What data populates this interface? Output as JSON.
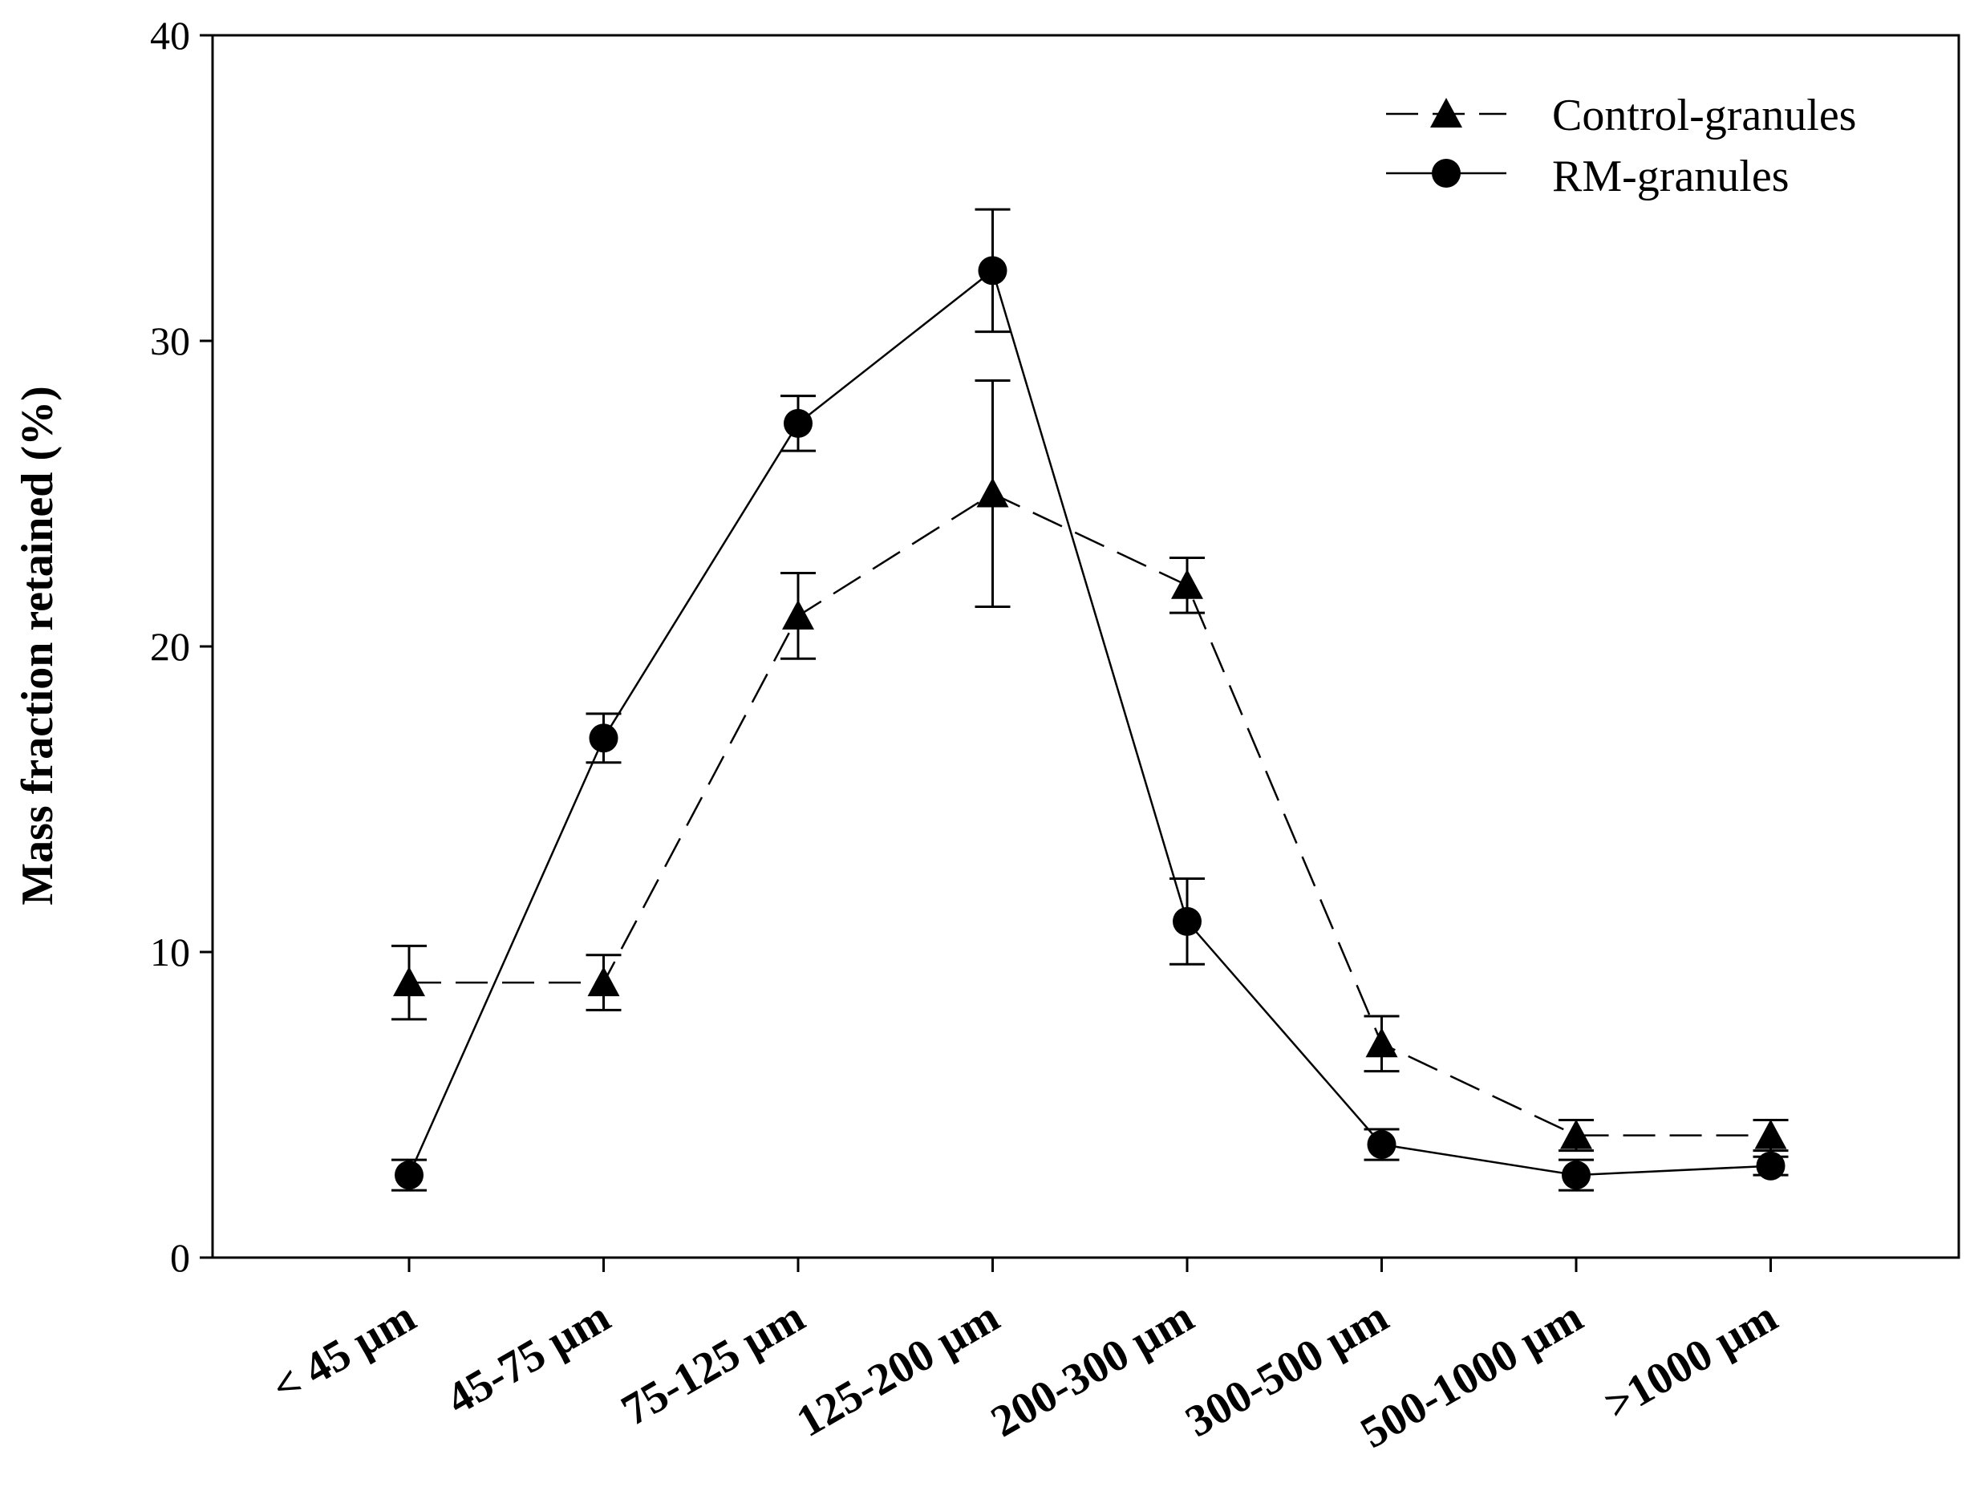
{
  "chart_data": {
    "type": "line",
    "title": "",
    "xlabel": "",
    "ylabel": "Mass fraction retained (%)",
    "ylim": [
      0,
      40
    ],
    "yticks": [
      0,
      10,
      20,
      30,
      40
    ],
    "grid": false,
    "legend_position": "top-right",
    "categories": [
      "< 45 µm",
      "45-75 µm",
      "75-125 µm",
      "125-200 µm",
      "200-300 µm",
      "300-500 µm",
      "500-1000 µm",
      ">1000 µm"
    ],
    "series": [
      {
        "name": "Control-granules",
        "marker": "triangle",
        "line_style": "dashed",
        "color": "#000000",
        "values": [
          9.0,
          9.0,
          21.0,
          25.0,
          22.0,
          7.0,
          4.0,
          4.0
        ],
        "errors": [
          1.2,
          0.9,
          1.4,
          3.7,
          0.9,
          0.9,
          0.5,
          0.5
        ]
      },
      {
        "name": "RM-granules",
        "marker": "circle",
        "line_style": "solid",
        "color": "#000000",
        "values": [
          2.7,
          17.0,
          27.3,
          32.3,
          11.0,
          3.7,
          2.7,
          3.0
        ],
        "errors": [
          0.5,
          0.8,
          0.9,
          2.0,
          1.4,
          0.5,
          0.5,
          0.3
        ]
      }
    ]
  }
}
